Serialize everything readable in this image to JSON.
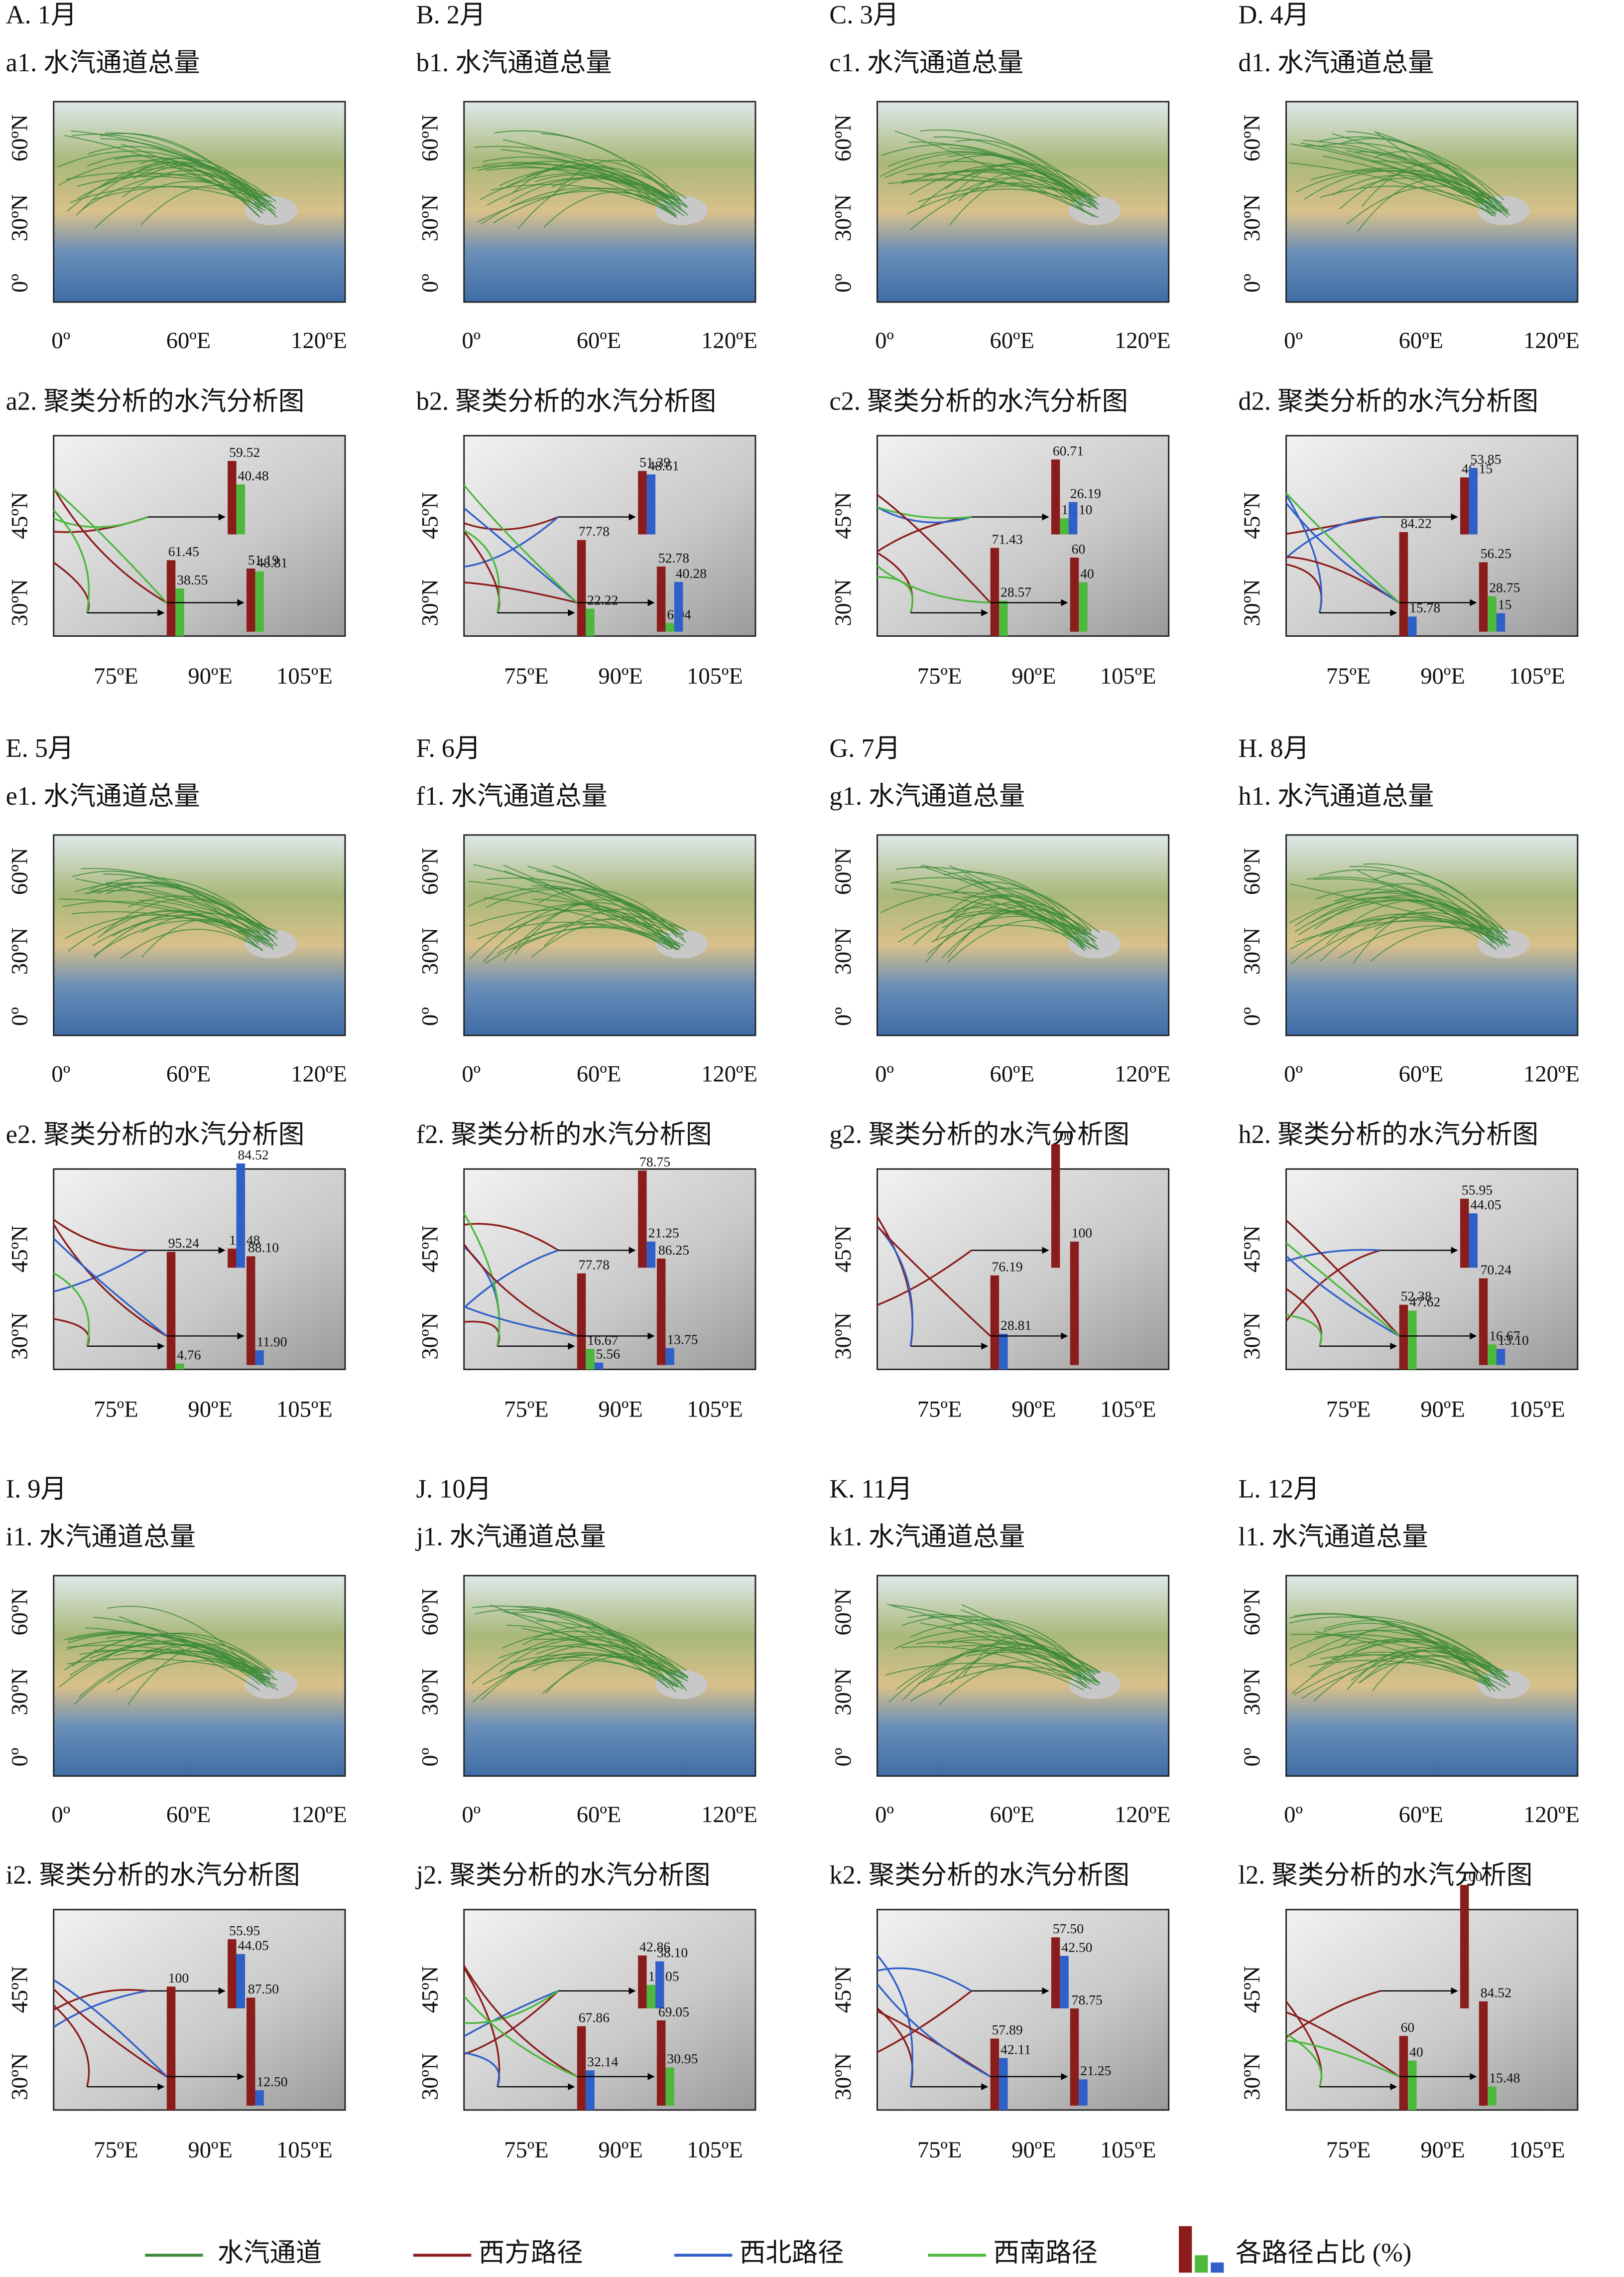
{
  "routes": [
    {
      "name": "西方路径",
      "color": "#8b1c1c"
    },
    {
      "name": "西北路径",
      "color": "#2f5fc8"
    },
    {
      "name": "西南路径",
      "color": "#4cb83c"
    }
  ],
  "channel": {
    "name": "水汽通道",
    "color": "#3c8a3a"
  },
  "bar_legend": "各路径占比 (%)",
  "axes": {
    "map": {
      "x": [
        "0º",
        "60ºE",
        "120ºE"
      ],
      "y": [
        "0º",
        "30ºN",
        "60ºN"
      ]
    },
    "cluster": {
      "x": [
        "75ºE",
        "90ºE",
        "105ºE"
      ],
      "y": [
        "30ºN",
        "45ºN"
      ]
    }
  },
  "panels": [
    {
      "label": "A. 1月",
      "map_title": "a1. 水汽通道总量",
      "cluster_title": "a2. 聚类分析的水汽分析图",
      "groups": [
        {
          "values": [
            59.52,
            null,
            40.48
          ]
        },
        {
          "values": [
            61.45,
            null,
            38.55
          ]
        },
        {
          "values": [
            51.19,
            null,
            48.81
          ]
        }
      ]
    },
    {
      "label": "B. 2月",
      "map_title": "b1. 水汽通道总量",
      "cluster_title": "b2. 聚类分析的水汽分析图",
      "groups": [
        {
          "values": [
            51.39,
            48.61,
            null
          ]
        },
        {
          "values": [
            77.78,
            null,
            22.22
          ]
        },
        {
          "values": [
            52.78,
            40.28,
            6.94
          ]
        }
      ]
    },
    {
      "label": "C. 3月",
      "map_title": "c1. 水汽通道总量",
      "cluster_title": "c2. 聚类分析的水汽分析图",
      "groups": [
        {
          "values": [
            60.71,
            26.19,
            13.1
          ],
          "value_labels": [
            "60.71",
            "26.19",
            "13.10"
          ]
        },
        {
          "values": [
            71.43,
            null,
            28.57
          ]
        },
        {
          "values": [
            60,
            null,
            40
          ]
        }
      ]
    },
    {
      "label": "D. 4月",
      "map_title": "d1. 水汽通道总量",
      "cluster_title": "d2. 聚类分析的水汽分析图",
      "groups": [
        {
          "values": [
            46.15,
            53.85,
            null
          ]
        },
        {
          "values": [
            84.22,
            15.78,
            null
          ]
        },
        {
          "values": [
            56.25,
            15,
            28.75
          ]
        }
      ]
    },
    {
      "label": "E. 5月",
      "map_title": "e1. 水汽通道总量",
      "cluster_title": "e2. 聚类分析的水汽分析图",
      "groups": [
        {
          "values": [
            15.48,
            84.52,
            null
          ]
        },
        {
          "values": [
            95.24,
            null,
            4.76
          ]
        },
        {
          "values": [
            88.1,
            11.9,
            null
          ],
          "value_labels": [
            "88.10",
            "11.90",
            null
          ]
        }
      ]
    },
    {
      "label": "F. 6月",
      "map_title": "f1. 水汽通道总量",
      "cluster_title": "f2. 聚类分析的水汽分析图",
      "groups": [
        {
          "values": [
            78.75,
            21.25,
            null
          ]
        },
        {
          "values": [
            77.78,
            5.56,
            16.67
          ]
        },
        {
          "values": [
            86.25,
            13.75,
            null
          ]
        }
      ]
    },
    {
      "label": "G. 7月",
      "map_title": "g1. 水汽通道总量",
      "cluster_title": "g2. 聚类分析的水汽分析图",
      "groups": [
        {
          "values": [
            100,
            null,
            null
          ]
        },
        {
          "values": [
            76.19,
            28.81,
            null
          ]
        },
        {
          "values": [
            100,
            null,
            null
          ]
        }
      ]
    },
    {
      "label": "H. 8月",
      "map_title": "h1. 水汽通道总量",
      "cluster_title": "h2. 聚类分析的水汽分析图",
      "groups": [
        {
          "values": [
            55.95,
            44.05,
            null
          ]
        },
        {
          "values": [
            52.38,
            null,
            47.62
          ]
        },
        {
          "values": [
            70.24,
            13.1,
            16.67
          ],
          "value_labels": [
            "70.24",
            "13.10",
            "16.67"
          ]
        }
      ]
    },
    {
      "label": "I. 9月",
      "map_title": "i1. 水汽通道总量",
      "cluster_title": "i2. 聚类分析的水汽分析图",
      "groups": [
        {
          "values": [
            55.95,
            44.05,
            null
          ]
        },
        {
          "values": [
            100,
            null,
            null
          ]
        },
        {
          "values": [
            87.5,
            12.5,
            null
          ],
          "value_labels": [
            "87.50",
            "12.50",
            null
          ]
        }
      ]
    },
    {
      "label": "J. 10月",
      "map_title": "j1. 水汽通道总量",
      "cluster_title": "j2. 聚类分析的水汽分析图",
      "groups": [
        {
          "values": [
            42.86,
            38.1,
            19.05
          ],
          "value_labels": [
            "42.86",
            "38.10",
            "19.05"
          ]
        },
        {
          "values": [
            67.86,
            32.14,
            null
          ]
        },
        {
          "values": [
            69.05,
            null,
            30.95
          ]
        }
      ]
    },
    {
      "label": "K. 11月",
      "map_title": "k1. 水汽通道总量",
      "cluster_title": "k2. 聚类分析的水汽分析图",
      "groups": [
        {
          "values": [
            57.5,
            42.5,
            null
          ],
          "value_labels": [
            "57.50",
            "42.50",
            null
          ]
        },
        {
          "values": [
            57.89,
            42.11,
            null
          ]
        },
        {
          "values": [
            78.75,
            21.25,
            null
          ]
        }
      ]
    },
    {
      "label": "L. 12月",
      "map_title": "l1. 水汽通道总量",
      "cluster_title": "l2. 聚类分析的水汽分析图",
      "groups": [
        {
          "values": [
            100,
            null,
            null
          ]
        },
        {
          "values": [
            60,
            null,
            40
          ]
        },
        {
          "values": [
            84.52,
            null,
            15.48
          ]
        }
      ]
    }
  ]
}
